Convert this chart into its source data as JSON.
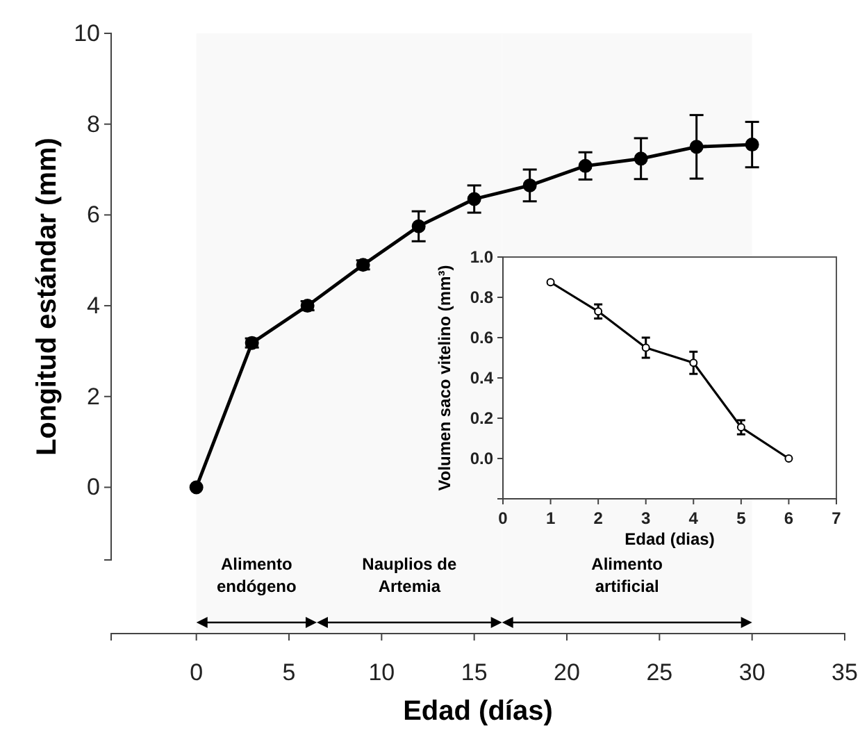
{
  "chart_data": [
    {
      "type": "line",
      "xlabel": "Edad (días)",
      "ylabel": "Longitud estándar (mm)",
      "xlim": [
        -4.6,
        35
      ],
      "ylim": [
        -1.6,
        10
      ],
      "xticks": [
        0,
        5,
        10,
        15,
        20,
        25,
        30,
        35
      ],
      "yticks": [
        0,
        2,
        4,
        6,
        8,
        10
      ],
      "marker": "circle",
      "line_style": "solid",
      "grid": false,
      "x": [
        0,
        3,
        6,
        9,
        12,
        15,
        18,
        21,
        24,
        27,
        30
      ],
      "series": [
        {
          "color": "#000000",
          "values": [
            0,
            3.18,
            4.0,
            4.9,
            5.75,
            6.35,
            6.65,
            7.08,
            7.24,
            7.5,
            7.55
          ],
          "errors": [
            null,
            0.1,
            0.1,
            0.1,
            0.33,
            0.3,
            0.35,
            0.3,
            0.45,
            0.7,
            0.5
          ]
        }
      ],
      "bands": [
        {
          "axis": "x",
          "from": 0,
          "to": 6.5,
          "label": "Alimento endógeno"
        },
        {
          "axis": "x",
          "from": 6.5,
          "to": 16.5,
          "label": "Nauplios de Artemia"
        },
        {
          "axis": "x",
          "from": 16.5,
          "to": 30,
          "label": "Alimento artificial"
        }
      ]
    },
    {
      "type": "line",
      "xlabel": "Edad (dias)",
      "ylabel": "Volumen saco vitelino (mm³)",
      "xlim": [
        0,
        7
      ],
      "ylim": [
        -0.2,
        1.0
      ],
      "xticks": [
        0,
        1,
        2,
        3,
        4,
        5,
        6,
        7
      ],
      "yticks": [
        {
          "value": 0,
          "label": "0.0"
        },
        0.2,
        0.4,
        0.6,
        0.8,
        {
          "value": 1,
          "label": "1.0"
        }
      ],
      "marker": "circle",
      "line_style": "solid",
      "grid": false,
      "x": [
        1,
        2,
        3,
        4,
        5,
        6
      ],
      "series": [
        {
          "color": "#000000",
          "values": [
            0.875,
            0.73,
            0.55,
            0.475,
            0.155,
            0
          ],
          "errors": [
            null,
            0.035,
            0.05,
            0.055,
            0.035,
            null
          ]
        }
      ]
    }
  ]
}
